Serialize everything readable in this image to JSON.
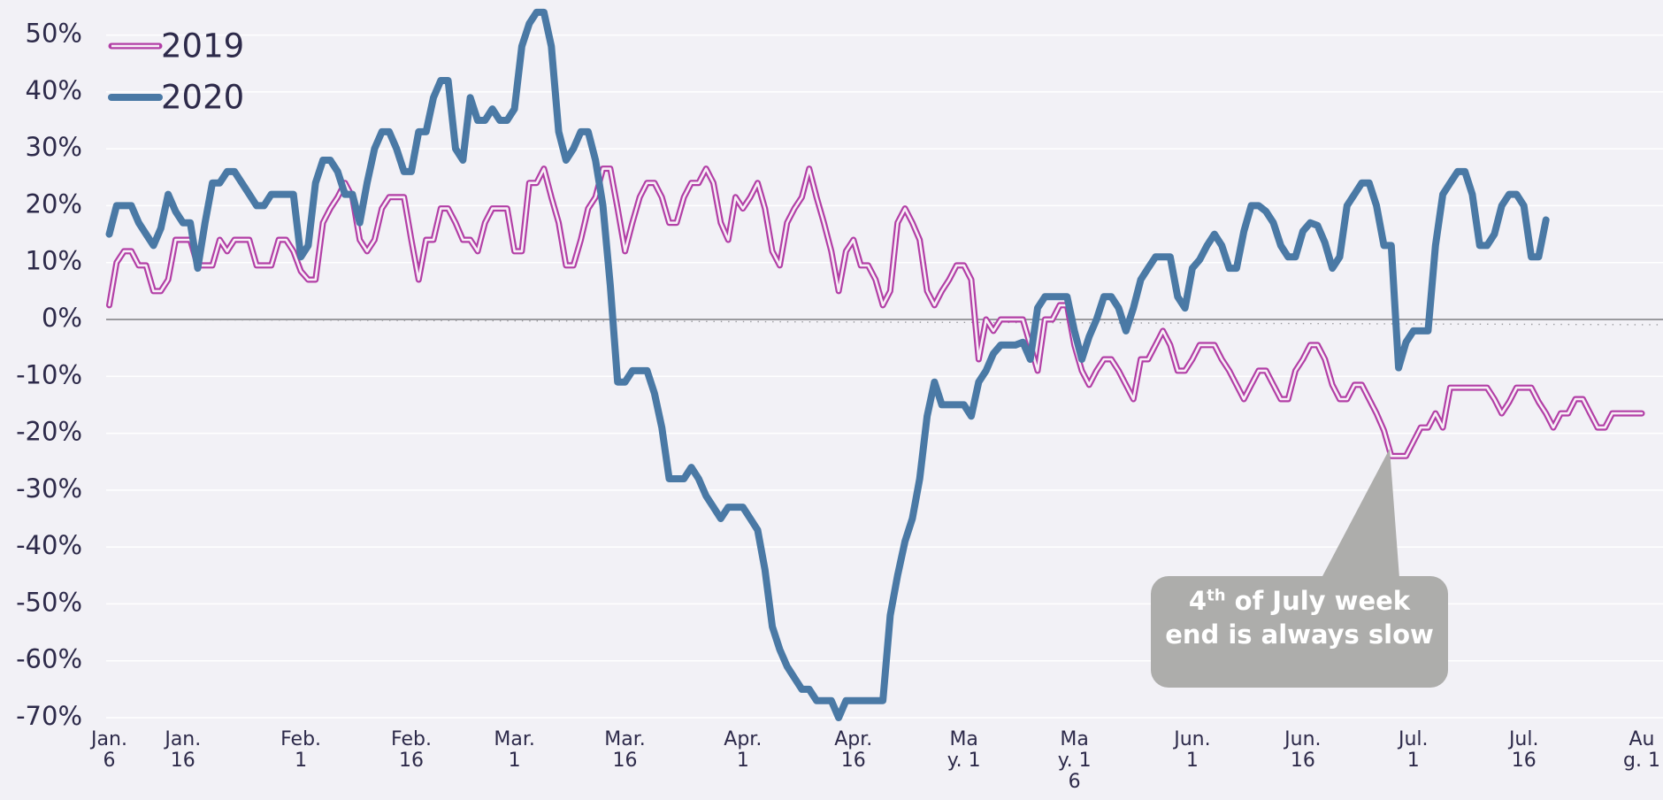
{
  "chart_data": {
    "type": "line",
    "categories": [
      "Jan. 6",
      null,
      null,
      null,
      null,
      null,
      null,
      null,
      null,
      null,
      "Jan. 16",
      null,
      null,
      null,
      null,
      null,
      null,
      null,
      null,
      null,
      null,
      null,
      null,
      null,
      null,
      null,
      "Feb. 1",
      null,
      null,
      null,
      null,
      null,
      null,
      null,
      null,
      null,
      null,
      null,
      null,
      null,
      null,
      "Feb. 16",
      null,
      null,
      null,
      null,
      null,
      null,
      null,
      null,
      null,
      null,
      null,
      null,
      null,
      "Mar. 1",
      null,
      null,
      null,
      null,
      null,
      null,
      null,
      null,
      null,
      null,
      null,
      null,
      null,
      null,
      "Mar. 16",
      null,
      null,
      null,
      null,
      null,
      null,
      null,
      null,
      null,
      null,
      null,
      null,
      null,
      null,
      null,
      "Apr. 1",
      null,
      null,
      null,
      null,
      null,
      null,
      null,
      null,
      null,
      null,
      null,
      null,
      null,
      null,
      "Apr. 16",
      null,
      null,
      null,
      null,
      null,
      null,
      null,
      null,
      null,
      null,
      null,
      null,
      null,
      null,
      "May. 1",
      null,
      null,
      null,
      null,
      null,
      null,
      null,
      null,
      null,
      null,
      null,
      null,
      null,
      null,
      "May. 16",
      null,
      null,
      null,
      null,
      null,
      null,
      null,
      null,
      null,
      null,
      null,
      null,
      null,
      null,
      null,
      "Jun. 1",
      null,
      null,
      null,
      null,
      null,
      null,
      null,
      null,
      null,
      null,
      null,
      null,
      null,
      null,
      "Jun. 16",
      null,
      null,
      null,
      null,
      null,
      null,
      null,
      null,
      null,
      null,
      null,
      null,
      null,
      null,
      "Jul. 1",
      null,
      null,
      null,
      null,
      null,
      null,
      null,
      null,
      null,
      null,
      null,
      null,
      null,
      null,
      "Jul. 16",
      null,
      null,
      null,
      null,
      null,
      null,
      null,
      null,
      null,
      null,
      null,
      null,
      null,
      null,
      null,
      "Aug. 1"
    ],
    "series": [
      {
        "name": "2019",
        "color": "#b23fa6",
        "style": "double",
        "values": [
          2.5,
          10,
          12,
          12,
          9.5,
          9.5,
          5,
          5,
          7,
          14,
          14,
          14,
          9.5,
          9.5,
          9.5,
          14,
          12,
          14,
          14,
          14,
          9.5,
          9.5,
          9.5,
          14,
          14,
          12,
          8.5,
          7,
          7,
          17,
          19.5,
          21.5,
          24,
          21.5,
          14,
          12,
          14,
          19.5,
          21.5,
          21.5,
          21.5,
          14,
          7,
          14,
          14,
          19.5,
          19.5,
          17,
          14,
          14,
          12,
          17,
          19.5,
          19.5,
          19.5,
          12,
          12,
          24,
          24,
          26.5,
          21.5,
          17,
          9.5,
          9.5,
          14,
          19.5,
          21.5,
          26.5,
          26.5,
          19.5,
          12,
          17,
          21.5,
          24,
          24,
          21.5,
          17,
          17,
          21.5,
          24,
          24,
          26.5,
          24,
          17,
          14,
          21.5,
          19.5,
          21.5,
          24,
          19.5,
          12,
          9.5,
          17,
          19.5,
          21.5,
          26.5,
          21.5,
          17,
          12,
          5,
          12,
          14,
          9.5,
          9.5,
          7,
          2.5,
          5,
          17,
          19.5,
          17,
          14,
          5,
          2.5,
          5,
          7,
          9.5,
          9.5,
          7,
          -7,
          0,
          -2,
          0,
          0,
          0,
          0,
          -4.5,
          -9,
          0,
          0,
          2.5,
          2.5,
          -4.5,
          -9,
          -11.5,
          -9,
          -7,
          -7,
          -9,
          -11.5,
          -14,
          -7,
          -7,
          -4.5,
          -2,
          -4.5,
          -9,
          -9,
          -7,
          -4.5,
          -4.5,
          -4.5,
          -7,
          -9,
          -11.5,
          -14,
          -11.5,
          -9,
          -9,
          -11.5,
          -14,
          -14,
          -9,
          -7,
          -4.5,
          -4.5,
          -7,
          -11.5,
          -14,
          -14,
          -11.5,
          -11.5,
          -14,
          -16.5,
          -19.5,
          -24,
          -24,
          -24,
          -21.5,
          -19,
          -19,
          -16.5,
          -19,
          -12,
          -12,
          -12,
          -12,
          -12,
          -12,
          -14,
          -16.5,
          -14.5,
          -12,
          -12,
          -12,
          -14.5,
          -16.5,
          -19,
          -16.5,
          -16.5,
          -14,
          -14,
          -16.5,
          -19,
          -19,
          -16.5,
          -16.5,
          -16.5,
          -16.5,
          -16.5
        ]
      },
      {
        "name": "2020",
        "color": "#4a79a5",
        "style": "solid",
        "values": [
          15,
          20,
          20,
          20,
          17,
          15,
          13,
          16,
          22,
          19,
          17,
          17,
          9,
          17,
          24,
          24,
          26,
          26,
          24,
          22,
          20,
          20,
          22,
          22,
          22,
          22,
          11,
          13,
          24,
          28,
          28,
          26,
          22,
          22,
          17,
          24,
          30,
          33,
          33,
          30,
          26,
          26,
          33,
          33,
          39,
          42,
          42,
          30,
          28,
          39,
          35,
          35,
          37,
          35,
          35,
          37,
          48,
          52,
          54,
          54,
          48,
          33,
          28,
          30,
          33,
          33,
          28,
          20,
          6,
          -11,
          -11,
          -9,
          -9,
          -9,
          -13,
          -19,
          -28,
          -28,
          -28,
          -26,
          -28,
          -31,
          -33,
          -35,
          -33,
          -33,
          -33,
          -35,
          -37,
          -44,
          -54,
          -58,
          -61,
          -63,
          -65,
          -65,
          -67,
          -67,
          -67,
          -70,
          -67,
          -67,
          -67,
          -67,
          -67,
          -67,
          -52,
          -45,
          -39,
          -35,
          -28,
          -17,
          -11,
          -15,
          -15,
          -15,
          -15,
          -17,
          -11,
          -9,
          -6,
          -4.5,
          -4.5,
          -4.5,
          -4,
          -7,
          2,
          4,
          4,
          4,
          4,
          -2,
          -7,
          -3,
          0,
          4,
          4,
          2,
          -2,
          2,
          7,
          9,
          11,
          11,
          11,
          4,
          2,
          9,
          10.5,
          13,
          15,
          13,
          9,
          9,
          15.5,
          20,
          20,
          19,
          17,
          13,
          11,
          11,
          15.5,
          17,
          16.5,
          13.5,
          9,
          11,
          20,
          22,
          24,
          24,
          20,
          13,
          13,
          -8.5,
          -4,
          -2,
          -2,
          -2,
          13,
          22,
          24,
          26,
          26,
          22,
          13,
          13,
          15,
          20,
          22,
          22,
          20,
          11,
          11,
          17.5,
          null,
          null,
          null,
          null,
          null,
          null,
          null,
          null,
          null,
          null,
          null,
          null,
          null
        ]
      }
    ],
    "ylim": [
      -70,
      56
    ],
    "yticks": [
      {
        "value": 50,
        "label": "50%"
      },
      {
        "value": 40,
        "label": "40%"
      },
      {
        "value": 30,
        "label": "30%"
      },
      {
        "value": 20,
        "label": "20%"
      },
      {
        "value": 10,
        "label": "10%"
      },
      {
        "value": 0,
        "label": "0%"
      },
      {
        "value": -10,
        "label": "-10%"
      },
      {
        "value": -20,
        "label": "-20%"
      },
      {
        "value": -30,
        "label": "-30%"
      },
      {
        "value": -40,
        "label": "-40%"
      },
      {
        "value": -50,
        "label": "-50%"
      },
      {
        "value": -60,
        "label": "-60%"
      },
      {
        "value": -70,
        "label": "-70%"
      }
    ],
    "grid": true,
    "legend": "top-left",
    "annotation_number": "4",
    "annotation_superscript": "th",
    "annotation": "of July week end is always slow"
  }
}
